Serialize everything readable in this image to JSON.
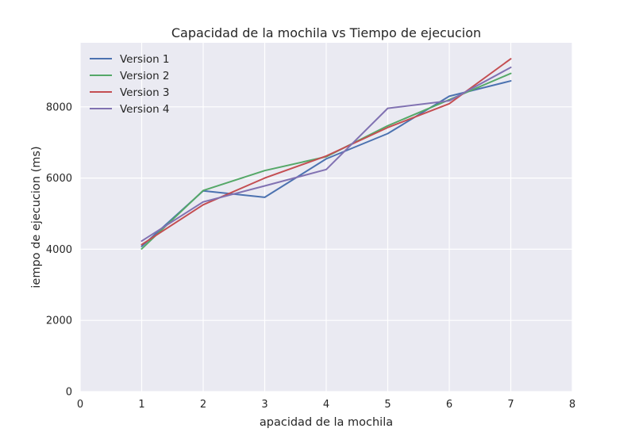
{
  "chart_data": {
    "type": "line",
    "title": "Capacidad de la mochila vs Tiempo de ejecucion",
    "xlabel": "apacidad de la mochila",
    "ylabel": "iempo de ejecucion (ms)",
    "xlim": [
      0,
      8
    ],
    "ylim": [
      0,
      9800
    ],
    "xticks": [
      0,
      1,
      2,
      3,
      4,
      5,
      6,
      7,
      8
    ],
    "yticks": [
      0,
      2000,
      4000,
      6000,
      8000
    ],
    "grid": true,
    "legend": "top-left",
    "x": [
      1,
      2,
      3,
      4,
      5,
      6,
      7
    ],
    "series": [
      {
        "name": "Version 1",
        "color": "#4c72b0",
        "values": [
          4080,
          5640,
          5460,
          6540,
          7250,
          8300,
          8730
        ]
      },
      {
        "name": "Version 2",
        "color": "#55a868",
        "values": [
          4010,
          5650,
          6210,
          6600,
          7470,
          8200,
          8940
        ]
      },
      {
        "name": "Version 3",
        "color": "#c44e52",
        "values": [
          4130,
          5250,
          6000,
          6620,
          7420,
          8090,
          9350
        ]
      },
      {
        "name": "Version 4",
        "color": "#8172b2",
        "values": [
          4230,
          5330,
          5780,
          6240,
          7960,
          8170,
          9110
        ]
      }
    ]
  }
}
